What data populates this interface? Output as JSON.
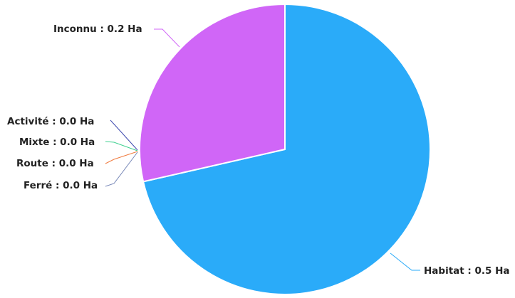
{
  "chart_data": {
    "type": "pie",
    "unit": "Ha",
    "slices": [
      {
        "name": "Habitat",
        "value": 0.5,
        "label": "Habitat : 0.5 Ha",
        "color": "#2aabf9",
        "line_color": "#2aabf9"
      },
      {
        "name": "Ferré",
        "value": 0.0,
        "label": "Ferré : 0.0 Ha",
        "color": "#6b7fb0",
        "line_color": "#7888b8"
      },
      {
        "name": "Route",
        "value": 0.0,
        "label": "Route : 0.0 Ha",
        "color": "#f07b3f",
        "line_color": "#f07b3f"
      },
      {
        "name": "Mixte",
        "value": 0.0,
        "label": "Mixte : 0.0 Ha",
        "color": "#3ed08f",
        "line_color": "#3ed08f"
      },
      {
        "name": "Activité",
        "value": 0.0,
        "label": "Activité : 0.0 Ha",
        "color": "#3f4bb0",
        "line_color": "#3f4bb0"
      },
      {
        "name": "Inconnu",
        "value": 0.2,
        "label": "Inconnu : 0.2 Ha",
        "color": "#d066f7",
        "line_color": "#d066f7"
      }
    ]
  }
}
